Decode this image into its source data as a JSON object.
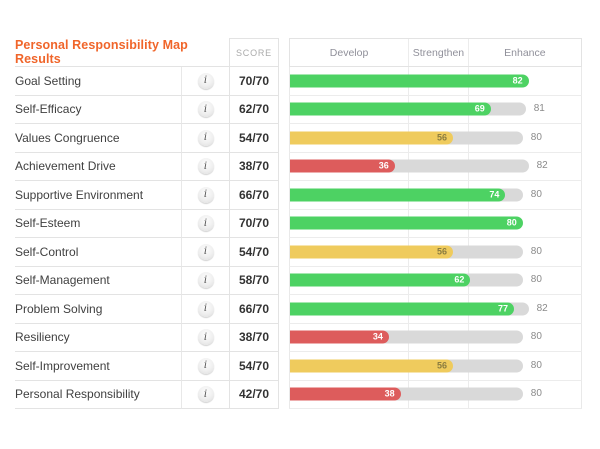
{
  "title": "Personal Responsibility Map Results",
  "score_header": "SCORE",
  "info_icon_glyph": "i",
  "colors": {
    "green": "#4dd263",
    "yellow": "#efcb5d",
    "red": "#dd5c5c",
    "track_gray": "#d9d9d9",
    "title_orange": "#f0652a"
  },
  "chart_data": {
    "type": "bar",
    "xlim": [
      0,
      100
    ],
    "grid": true,
    "zones": [
      {
        "label": "Develop",
        "range": [
          0,
          40
        ]
      },
      {
        "label": "Strengthen",
        "range": [
          40,
          60
        ]
      },
      {
        "label": "Enhance",
        "range": [
          60,
          100
        ]
      }
    ],
    "rows": [
      {
        "label": "Goal Setting",
        "score": "70/70",
        "value": 82,
        "color": "green",
        "benchmark": null
      },
      {
        "label": "Self-Efficacy",
        "score": "62/70",
        "value": 69,
        "color": "green",
        "benchmark": 81
      },
      {
        "label": "Values Congruence",
        "score": "54/70",
        "value": 56,
        "color": "yellow",
        "benchmark": 80
      },
      {
        "label": "Achievement Drive",
        "score": "38/70",
        "value": 36,
        "color": "red",
        "benchmark": 82
      },
      {
        "label": "Supportive Environment",
        "score": "66/70",
        "value": 74,
        "color": "green",
        "benchmark": 80
      },
      {
        "label": "Self-Esteem",
        "score": "70/70",
        "value": 80,
        "color": "green",
        "benchmark": null
      },
      {
        "label": "Self-Control",
        "score": "54/70",
        "value": 56,
        "color": "yellow",
        "benchmark": 80
      },
      {
        "label": "Self-Management",
        "score": "58/70",
        "value": 62,
        "color": "green",
        "benchmark": 80
      },
      {
        "label": "Problem Solving",
        "score": "66/70",
        "value": 77,
        "color": "green",
        "benchmark": 82
      },
      {
        "label": "Resiliency",
        "score": "38/70",
        "value": 34,
        "color": "red",
        "benchmark": 80
      },
      {
        "label": "Self-Improvement",
        "score": "54/70",
        "value": 56,
        "color": "yellow",
        "benchmark": 80
      },
      {
        "label": "Personal Responsibility",
        "score": "42/70",
        "value": 38,
        "color": "red",
        "benchmark": 80
      }
    ]
  }
}
